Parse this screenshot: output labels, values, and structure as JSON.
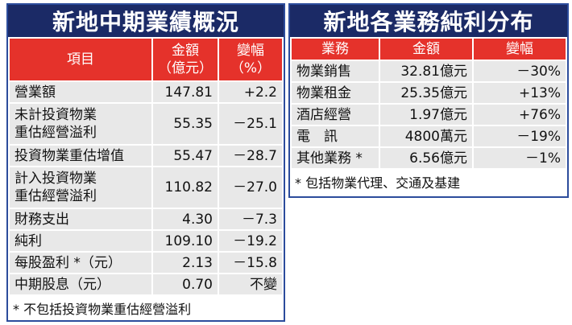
{
  "left": {
    "title": "新地中期業績概況",
    "headers": [
      [
        "項目"
      ],
      [
        "金額",
        "（億元）"
      ],
      [
        "變幅",
        "（%）"
      ]
    ],
    "rows": [
      [
        [
          "營業額"
        ],
        "147.81",
        "+2.2"
      ],
      [
        [
          "未計投資物業",
          "重估經營溢利"
        ],
        "55.35",
        "－25.1"
      ],
      [
        [
          "投資物業重估增值"
        ],
        "55.47",
        "－28.7"
      ],
      [
        [
          "計入投資物業",
          "重估經營溢利"
        ],
        "110.82",
        "－27.0"
      ],
      [
        [
          "財務支出"
        ],
        "4.30",
        "－7.3"
      ],
      [
        [
          "純利"
        ],
        "109.10",
        "－19.2"
      ],
      [
        [
          "每股盈利 *（元）"
        ],
        "2.13",
        "－15.8"
      ],
      [
        [
          "中期股息（元）"
        ],
        "0.70",
        "不變"
      ]
    ],
    "note": "* 不包括投資物業重估經營溢利"
  },
  "right": {
    "title": "新地各業務純利分布",
    "headers": [
      [
        "業務"
      ],
      [
        "金額"
      ],
      [
        "變幅"
      ]
    ],
    "rows": [
      [
        [
          "物業銷售"
        ],
        "32.81億元",
        "－30%"
      ],
      [
        [
          "物業租金"
        ],
        "25.35億元",
        "+13%"
      ],
      [
        [
          "酒店經營"
        ],
        "1.97億元",
        "+76%"
      ],
      [
        [
          "電　訊"
        ],
        "4800萬元",
        "－19%"
      ],
      [
        [
          "其他業務 *"
        ],
        "6.56億元",
        "－1%"
      ]
    ],
    "note": "* 包括物業代理、交通及基建"
  }
}
